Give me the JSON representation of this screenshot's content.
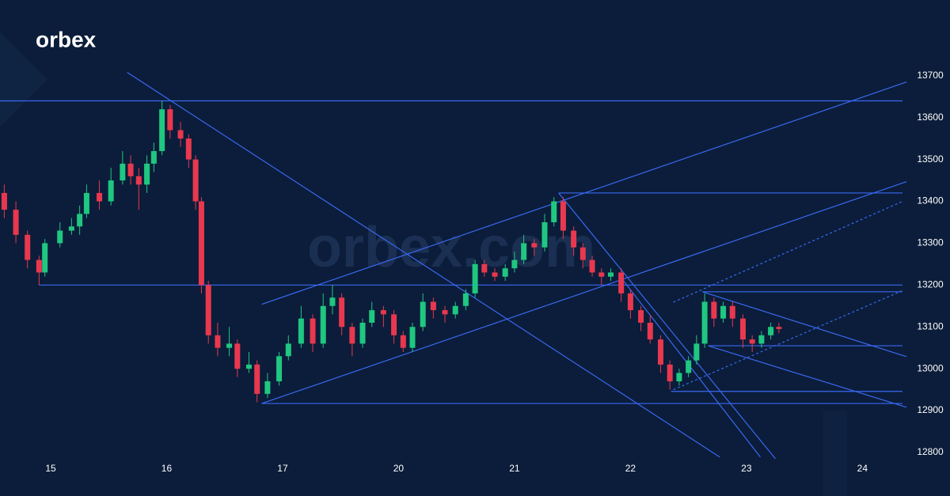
{
  "brand": "orbex",
  "watermark": "orbex.com",
  "chart_data": {
    "type": "candlestick",
    "xlim": [
      -0.437,
      7.346
    ],
    "ylim": [
      12696,
      13881
    ],
    "xticks": [
      {
        "value": 0,
        "label": "15"
      },
      {
        "value": 1,
        "label": "16"
      },
      {
        "value": 2,
        "label": "17"
      },
      {
        "value": 3,
        "label": "20"
      },
      {
        "value": 4,
        "label": "21"
      },
      {
        "value": 5,
        "label": "22"
      },
      {
        "value": 6,
        "label": "23"
      },
      {
        "value": 7,
        "label": "24"
      }
    ],
    "yticks": [
      12800,
      12900,
      13000,
      13100,
      13200,
      13300,
      13400,
      13500,
      13600,
      13700
    ],
    "up_color": "#1fc780",
    "down_color": "#e8384f",
    "line_color": "#3a68f2",
    "x": [
      -0.4,
      -0.3,
      -0.2,
      -0.1,
      -0.05,
      0.08,
      0.18,
      0.25,
      0.31,
      0.42,
      0.52,
      0.62,
      0.69,
      0.76,
      0.83,
      0.89,
      0.96,
      1.03,
      1.12,
      1.19,
      1.25,
      1.3,
      1.36,
      1.44,
      1.54,
      1.61,
      1.71,
      1.78,
      1.87,
      1.97,
      2.05,
      2.16,
      2.26,
      2.35,
      2.43,
      2.51,
      2.6,
      2.69,
      2.77,
      2.87,
      2.96,
      3.04,
      3.12,
      3.21,
      3.3,
      3.4,
      3.49,
      3.58,
      3.66,
      3.74,
      3.83,
      3.92,
      4.0,
      4.08,
      4.17,
      4.26,
      4.34,
      4.42,
      4.51,
      4.59,
      4.67,
      4.75,
      4.83,
      4.92,
      5.0,
      5.09,
      5.17,
      5.26,
      5.34,
      5.42,
      5.5,
      5.57,
      5.64,
      5.72,
      5.8,
      5.88,
      5.97,
      6.05,
      6.13,
      6.21,
      6.28
    ],
    "open": [
      13420,
      13380,
      13320,
      13260,
      13230,
      13300,
      13330,
      13340,
      13370,
      13420,
      13400,
      13450,
      13490,
      13460,
      13440,
      13490,
      13520,
      13620,
      13570,
      13550,
      13500,
      13400,
      13200,
      13080,
      13050,
      13060,
      13000,
      13010,
      12940,
      12970,
      13030,
      13060,
      13120,
      13060,
      13150,
      13170,
      13100,
      13060,
      13110,
      13140,
      13130,
      13080,
      13050,
      13100,
      13160,
      13140,
      13130,
      13150,
      13180,
      13250,
      13230,
      13220,
      13240,
      13260,
      13300,
      13290,
      13350,
      13400,
      13330,
      13290,
      13260,
      13230,
      13220,
      13230,
      13180,
      13140,
      13110,
      13070,
      13010,
      12970,
      12990,
      13020,
      13060,
      13160,
      13120,
      13150,
      13120,
      13070,
      13060,
      13080,
      13100
    ],
    "high": [
      13440,
      13400,
      13330,
      13270,
      13310,
      13350,
      13360,
      13390,
      13440,
      13450,
      13480,
      13520,
      13510,
      13480,
      13510,
      13540,
      13640,
      13630,
      13590,
      13560,
      13510,
      13410,
      13210,
      13110,
      13100,
      13070,
      13040,
      13020,
      12990,
      13040,
      13080,
      13150,
      13130,
      13180,
      13200,
      13180,
      13110,
      13120,
      13160,
      13150,
      13140,
      13090,
      13110,
      13180,
      13170,
      13150,
      13160,
      13190,
      13260,
      13260,
      13240,
      13250,
      13280,
      13320,
      13310,
      13370,
      13410,
      13410,
      13340,
      13300,
      13270,
      13240,
      13240,
      13240,
      13190,
      13150,
      13130,
      13080,
      13020,
      13000,
      13030,
      13080,
      13180,
      13170,
      13160,
      13160,
      13130,
      13080,
      13090,
      13110,
      13110
    ],
    "low": [
      13360,
      13300,
      13240,
      13200,
      13220,
      13290,
      13320,
      13320,
      13360,
      13380,
      13390,
      13440,
      13440,
      13380,
      13420,
      13470,
      13510,
      13550,
      13530,
      13480,
      13380,
      13180,
      13060,
      13030,
      13030,
      12980,
      12990,
      12920,
      12930,
      12960,
      13020,
      13050,
      13040,
      13050,
      13130,
      13080,
      13030,
      13050,
      13100,
      13100,
      13060,
      13040,
      13040,
      13090,
      13120,
      13110,
      13120,
      13140,
      13170,
      13220,
      13210,
      13210,
      13230,
      13250,
      13270,
      13280,
      13340,
      13310,
      13270,
      13240,
      13220,
      13200,
      13210,
      13160,
      13120,
      13090,
      13060,
      12990,
      12950,
      12960,
      12980,
      13010,
      13050,
      13100,
      13110,
      13100,
      13050,
      13040,
      13050,
      13070,
      13085
    ],
    "close": [
      13380,
      13320,
      13260,
      13230,
      13300,
      13330,
      13340,
      13370,
      13420,
      13400,
      13450,
      13490,
      13460,
      13440,
      13490,
      13520,
      13620,
      13570,
      13550,
      13500,
      13400,
      13200,
      13080,
      13050,
      13060,
      13000,
      13010,
      12940,
      12970,
      13030,
      13060,
      13120,
      13060,
      13150,
      13170,
      13100,
      13060,
      13110,
      13140,
      13130,
      13080,
      13050,
      13100,
      13160,
      13140,
      13130,
      13150,
      13180,
      13250,
      13230,
      13220,
      13240,
      13260,
      13300,
      13290,
      13350,
      13400,
      13330,
      13290,
      13260,
      13230,
      13220,
      13230,
      13180,
      13140,
      13110,
      13070,
      13010,
      12970,
      12990,
      13020,
      13060,
      13160,
      13120,
      13150,
      13120,
      13070,
      13060,
      13080,
      13100,
      13095
    ],
    "trendlines": [
      {
        "from": [
          -0.437,
          13640
        ],
        "to": [
          7.346,
          13640
        ]
      },
      {
        "from": [
          -0.1,
          13200
        ],
        "to": [
          7.346,
          13200
        ]
      },
      {
        "from": [
          1.82,
          12917
        ],
        "to": [
          7.346,
          12917
        ]
      },
      {
        "from": [
          4.38,
          13420
        ],
        "to": [
          7.346,
          13420
        ]
      },
      {
        "from": [
          5.35,
          12946
        ],
        "to": [
          7.346,
          12946
        ]
      },
      {
        "from": [
          5.67,
          13055
        ],
        "to": [
          7.346,
          13055
        ]
      },
      {
        "from": [
          5.62,
          13184
        ],
        "to": [
          7.346,
          13184
        ]
      },
      {
        "from": [
          0.66,
          13708
        ],
        "to": [
          5.77,
          12789
        ]
      },
      {
        "from": [
          1.82,
          13154
        ],
        "to": [
          7.38,
          13685
        ]
      },
      {
        "from": [
          1.82,
          12917
        ],
        "to": [
          7.38,
          13447
        ]
      },
      {
        "from": [
          5.37,
          13159
        ],
        "to": [
          7.34,
          13399
        ],
        "dashed": true
      },
      {
        "from": [
          5.37,
          12950
        ],
        "to": [
          7.34,
          13186
        ],
        "dashed": true
      },
      {
        "from": [
          4.38,
          13420
        ],
        "to": [
          6.25,
          12785
        ]
      },
      {
        "from": [
          4.94,
          13210
        ],
        "to": [
          6.12,
          12789
        ]
      },
      {
        "from": [
          5.62,
          13184
        ],
        "to": [
          7.38,
          13029
        ]
      },
      {
        "from": [
          5.67,
          13055
        ],
        "to": [
          7.38,
          12908
        ]
      }
    ]
  }
}
